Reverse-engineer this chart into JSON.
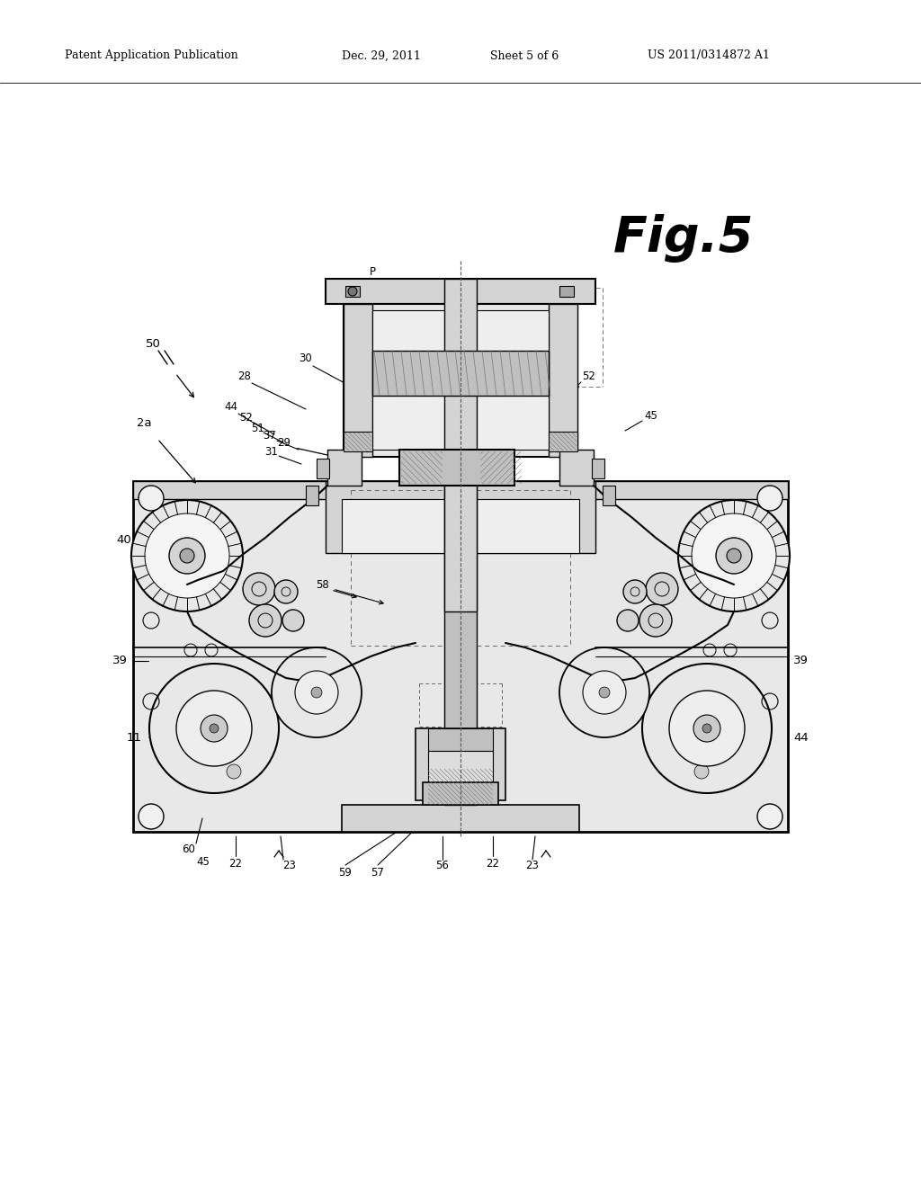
{
  "bg": "#ffffff",
  "header_left": "Patent Application Publication",
  "header_date": "Dec. 29, 2011",
  "header_sheet": "Sheet 5 of 6",
  "header_patent": "US 2011/0314872 A1",
  "fig_label": "Fig.5",
  "lc": "#000000",
  "gray1": "#e8e8e8",
  "gray2": "#d4d4d4",
  "gray3": "#c0c0c0",
  "gray4": "#a8a8a8",
  "hatch": "#888888"
}
